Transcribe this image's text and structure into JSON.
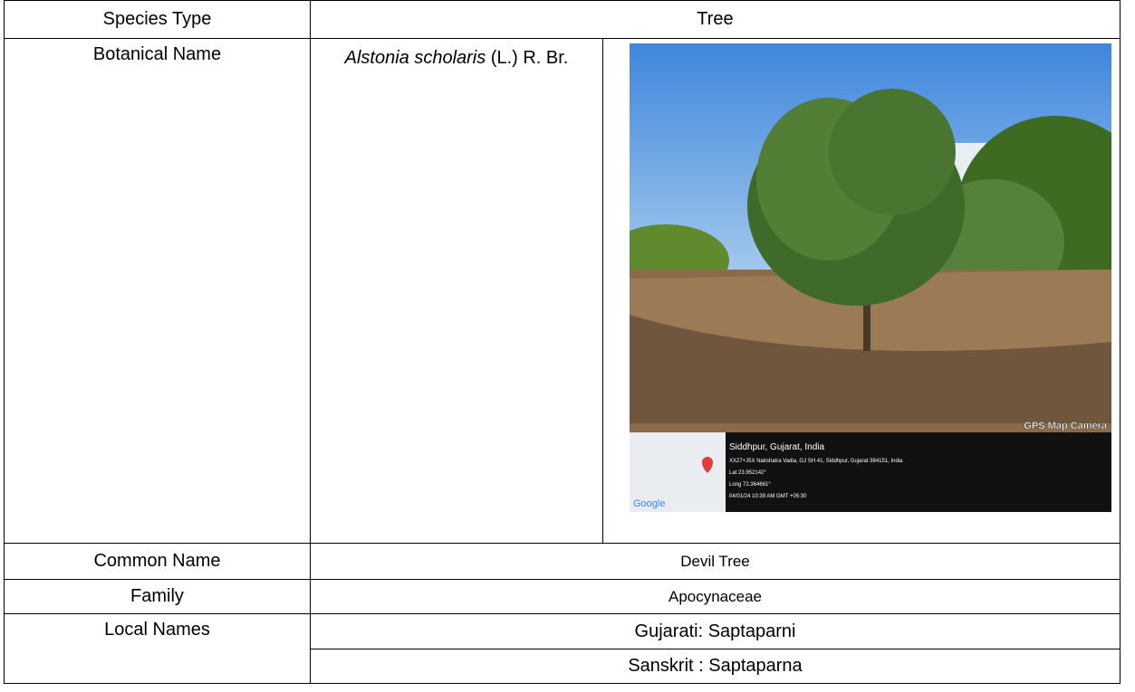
{
  "species_type": {
    "label": "Species Type",
    "value": "Tree"
  },
  "botanical_name": {
    "label": "Botanical Name",
    "genus_species": "Alstonia scholaris",
    "authority": "(L.) R. Br."
  },
  "photo": {
    "stamp": "GPS Map Camera",
    "place": "Siddhpur, Gujarat, India",
    "address": "XX27+J5X Nakshatra Vadia, GJ SH 41, Siddhpur, Gujarat 384151, India",
    "lat": "Lat 23.952142°",
    "long": "Long 72.364661°",
    "time": "04/01/24 10:39 AM GMT +05:30",
    "map_brand": "Google"
  },
  "common_name": {
    "label": "Common Name",
    "value": "Devil Tree"
  },
  "family": {
    "label": "Family",
    "value": "Apocynaceae"
  },
  "local_names": {
    "label": "Local Names",
    "values": [
      "Gujarati: Saptaparni",
      "Sanskrit : Saptaparna"
    ]
  }
}
